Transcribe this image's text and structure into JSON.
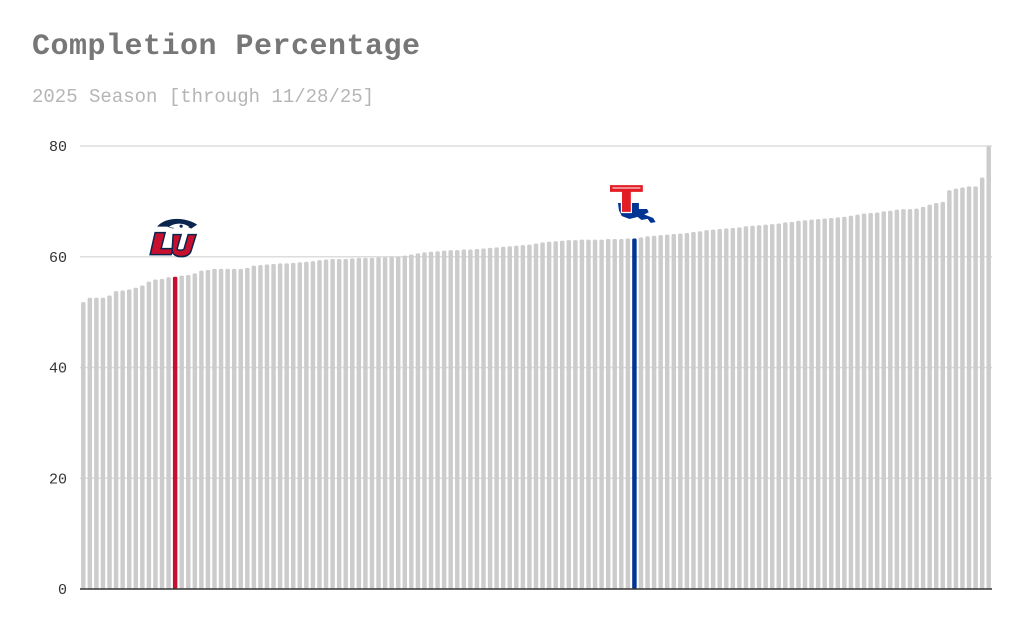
{
  "header": {
    "title": "Completion Percentage",
    "subtitle": "2025 Season [through 11/28/25]"
  },
  "colors": {
    "bar": "#cccccc",
    "grid": "#dddddd",
    "axis": "#333333",
    "liberty": "#c8102e",
    "louisiana_tech": "#003594"
  },
  "chart_data": {
    "type": "bar",
    "title": "Completion Percentage",
    "subtitle": "2025 Season [through 11/28/25]",
    "xlabel": "",
    "ylabel": "",
    "ylim": [
      0,
      80
    ],
    "yticks": [
      0,
      20,
      40,
      60,
      80
    ],
    "grid": true,
    "sorted": "ascending",
    "values": [
      51.8,
      52.6,
      52.6,
      52.6,
      53.0,
      53.8,
      53.9,
      54.1,
      54.4,
      54.8,
      55.5,
      55.9,
      56.0,
      56.3,
      56.4,
      56.6,
      56.7,
      57.0,
      57.5,
      57.6,
      57.8,
      57.8,
      57.8,
      57.8,
      57.8,
      58.0,
      58.4,
      58.5,
      58.6,
      58.7,
      58.8,
      58.8,
      58.9,
      59.0,
      59.1,
      59.2,
      59.4,
      59.5,
      59.6,
      59.6,
      59.6,
      59.7,
      59.8,
      59.8,
      59.8,
      59.9,
      59.9,
      60.0,
      60.0,
      60.2,
      60.4,
      60.6,
      60.8,
      60.9,
      61.0,
      61.1,
      61.2,
      61.2,
      61.3,
      61.3,
      61.4,
      61.5,
      61.6,
      61.7,
      61.8,
      61.9,
      62.0,
      62.1,
      62.2,
      62.4,
      62.6,
      62.7,
      62.8,
      62.9,
      63.0,
      63.0,
      63.1,
      63.1,
      63.1,
      63.1,
      63.2,
      63.2,
      63.2,
      63.3,
      63.3,
      63.5,
      63.7,
      63.8,
      63.9,
      64.0,
      64.1,
      64.2,
      64.3,
      64.5,
      64.6,
      64.8,
      64.9,
      65.0,
      65.1,
      65.2,
      65.3,
      65.5,
      65.6,
      65.7,
      65.8,
      65.9,
      66.0,
      66.2,
      66.3,
      66.5,
      66.6,
      66.7,
      66.8,
      66.9,
      67.0,
      67.1,
      67.2,
      67.4,
      67.6,
      67.8,
      67.9,
      68.0,
      68.2,
      68.3,
      68.5,
      68.6,
      68.6,
      68.7,
      69.0,
      69.4,
      69.7,
      69.9,
      72.0,
      72.3,
      72.5,
      72.7,
      72.7,
      74.3,
      80.0
    ],
    "highlights": [
      {
        "index": 14,
        "value": 56.4,
        "color": "#c8102e",
        "logo": "LU"
      },
      {
        "index": 84,
        "value": 63.3,
        "color": "#003594",
        "logo": "T"
      }
    ]
  }
}
